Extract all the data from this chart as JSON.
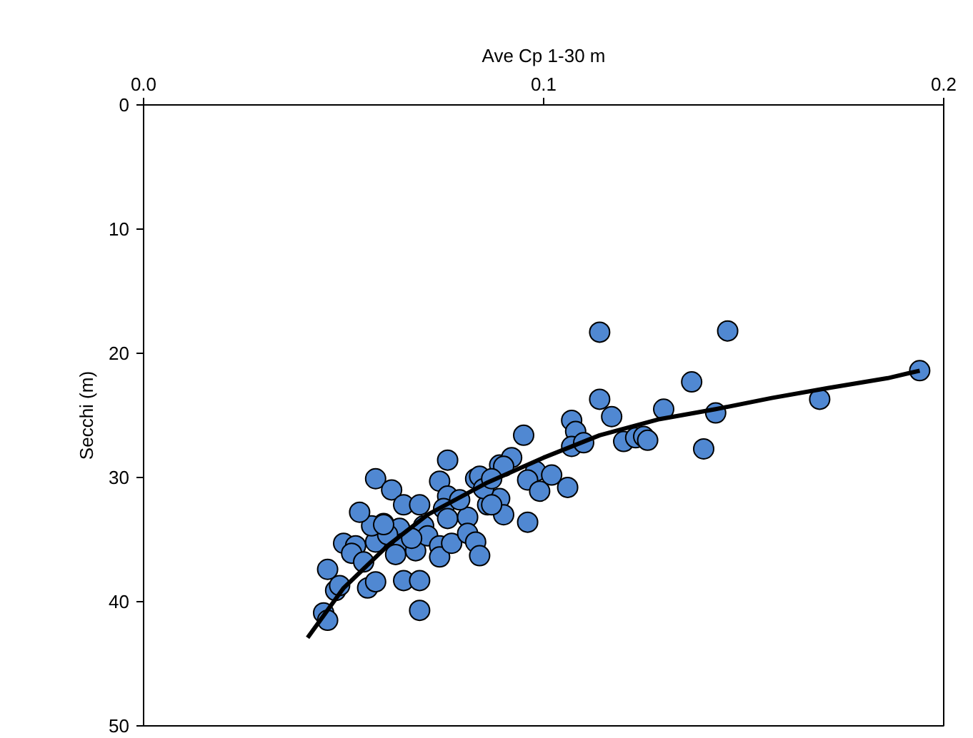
{
  "chart_data": {
    "type": "scatter",
    "xlabel": "Ave Cp 1-30 m",
    "ylabel": "Secchi (m)",
    "xlim": [
      0,
      0.2
    ],
    "xticks": [
      {
        "value": 0,
        "label": "0.0"
      },
      0.1,
      0.2
    ],
    "ylim": [
      50,
      0
    ],
    "yticks": [
      0,
      10,
      20,
      30,
      40,
      50
    ],
    "grid": false,
    "series": [
      {
        "marker": "circle",
        "color": "#5088d2",
        "x": [
          0.045,
          0.046,
          0.046,
          0.048,
          0.049,
          0.05,
          0.053,
          0.052,
          0.056,
          0.058,
          0.055,
          0.058,
          0.06,
          0.058,
          0.062,
          0.065,
          0.069,
          0.064,
          0.065,
          0.063,
          0.068,
          0.065,
          0.069,
          0.069,
          0.076,
          0.074,
          0.076,
          0.075,
          0.076,
          0.07,
          0.071,
          0.074,
          0.074,
          0.077,
          0.081,
          0.081,
          0.083,
          0.084,
          0.083,
          0.084,
          0.086,
          0.089,
          0.09,
          0.085,
          0.089,
          0.092,
          0.079,
          0.067,
          0.061,
          0.057,
          0.054,
          0.06,
          0.114,
          0.137,
          0.114,
          0.117,
          0.13,
          0.143,
          0.14,
          0.107,
          0.108,
          0.107,
          0.11,
          0.12,
          0.123,
          0.125,
          0.126,
          0.095,
          0.09,
          0.098,
          0.096,
          0.102,
          0.106,
          0.099,
          0.087,
          0.087,
          0.096,
          0.146,
          0.169,
          0.194
        ],
        "values": [
          40.9,
          41.5,
          37.4,
          39.1,
          38.7,
          35.3,
          35.5,
          36.1,
          38.9,
          38.4,
          36.8,
          35.2,
          33.7,
          30.1,
          31.0,
          32.2,
          32.2,
          34.1,
          35.3,
          36.2,
          35.9,
          38.3,
          38.3,
          40.7,
          28.6,
          30.3,
          31.5,
          32.5,
          33.3,
          33.9,
          34.7,
          35.5,
          36.4,
          35.3,
          33.2,
          34.5,
          35.2,
          36.3,
          30.1,
          29.9,
          32.2,
          31.7,
          33.0,
          30.9,
          29.0,
          28.4,
          31.8,
          34.9,
          34.6,
          33.9,
          32.8,
          33.8,
          18.3,
          22.3,
          23.7,
          25.1,
          24.5,
          24.8,
          27.7,
          25.4,
          26.3,
          27.5,
          27.2,
          27.1,
          26.8,
          26.7,
          27.0,
          26.6,
          29.1,
          29.5,
          30.2,
          29.8,
          30.8,
          31.1,
          30.1,
          32.2,
          33.6,
          18.2,
          23.7,
          21.4
        ]
      },
      {
        "type": "line",
        "marker": "none",
        "line_style": "solid",
        "color": "#000000",
        "x": [
          0.041,
          0.05,
          0.061,
          0.071,
          0.086,
          0.1,
          0.114,
          0.129,
          0.143,
          0.157,
          0.171,
          0.186,
          0.194
        ],
        "values": [
          42.9,
          38.9,
          35.5,
          33.0,
          30.4,
          28.4,
          26.6,
          25.3,
          24.5,
          23.6,
          22.8,
          22.0,
          21.4
        ]
      }
    ]
  }
}
